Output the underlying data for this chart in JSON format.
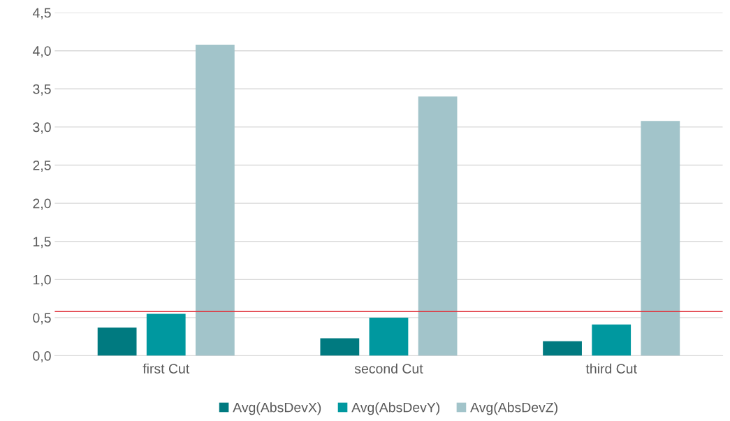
{
  "chart_data": {
    "type": "bar",
    "categories": [
      "first Cut",
      "second Cut",
      "third Cut"
    ],
    "series": [
      {
        "name": "Avg(AbsDevX)",
        "color": "#007a80",
        "values": [
          0.37,
          0.23,
          0.19
        ]
      },
      {
        "name": "Avg(AbsDevY)",
        "color": "#00989f",
        "values": [
          0.55,
          0.5,
          0.41
        ]
      },
      {
        "name": "Avg(AbsDevZ)",
        "color": "#a2c4ca",
        "values": [
          4.08,
          3.4,
          3.08
        ]
      }
    ],
    "ylim": [
      0,
      4.5
    ],
    "yticks": [
      {
        "value": 0,
        "label": "0,0"
      },
      {
        "value": 0.5,
        "label": "0,5"
      },
      {
        "value": 1,
        "label": "1,0"
      },
      {
        "value": 1.5,
        "label": "1,5"
      },
      {
        "value": 2,
        "label": "2,0"
      },
      {
        "value": 2.5,
        "label": "2,5"
      },
      {
        "value": 3,
        "label": "3,0"
      },
      {
        "value": 3.5,
        "label": "3,5"
      },
      {
        "value": 4,
        "label": "4,0"
      },
      {
        "value": 4.5,
        "label": "4,5"
      }
    ],
    "ref_lines": [
      {
        "axis": "y",
        "value": 0.58,
        "color": "#e0303a"
      }
    ],
    "grid": "y",
    "legend": "bottom"
  }
}
